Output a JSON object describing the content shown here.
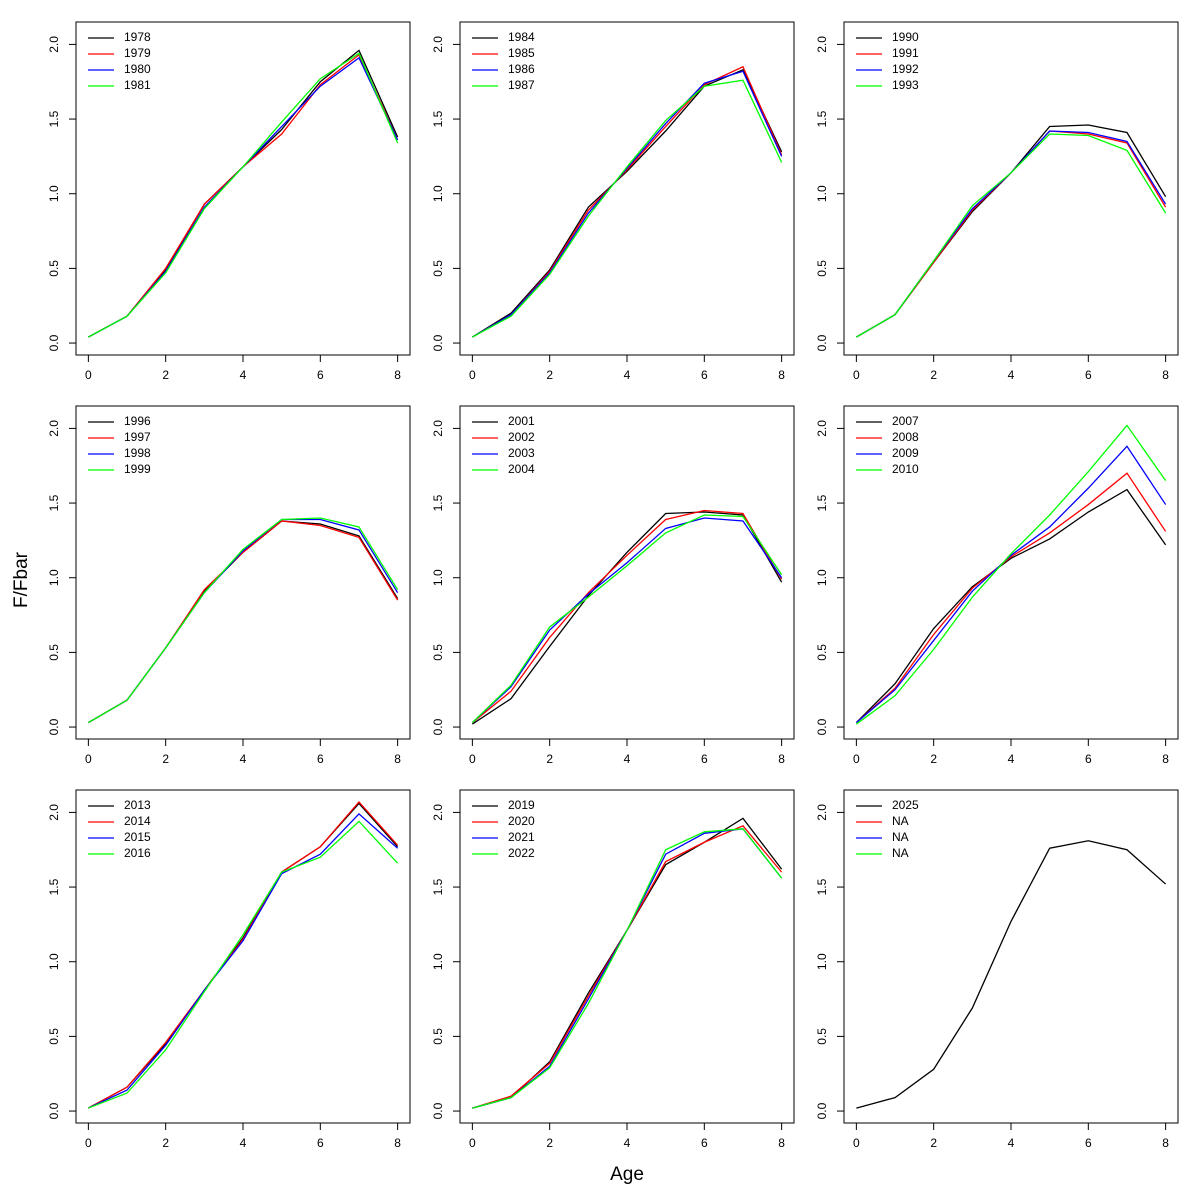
{
  "xlabel": "Age",
  "ylabel": "F/Fbar",
  "chart_data": [
    {
      "type": "line",
      "x": [
        0,
        1,
        2,
        3,
        4,
        5,
        6,
        7,
        8
      ],
      "xlim": [
        -0.32,
        8.32
      ],
      "ylim": [
        -0.08,
        2.15
      ],
      "xticks": [
        0,
        2,
        4,
        6,
        8
      ],
      "yticks": [
        {
          "value": 0,
          "label": "0.0"
        },
        0.5,
        {
          "value": 1,
          "label": "1.0"
        },
        1.5,
        {
          "value": 2,
          "label": "2.0"
        }
      ],
      "legend": "top-left",
      "series": [
        {
          "name": "1978",
          "color": "#000000",
          "values": [
            0.04,
            0.18,
            0.49,
            0.93,
            1.18,
            1.43,
            1.75,
            1.96,
            1.38
          ]
        },
        {
          "name": "1979",
          "color": "#ff0000",
          "values": [
            0.04,
            0.18,
            0.5,
            0.93,
            1.18,
            1.4,
            1.73,
            1.93,
            1.36
          ]
        },
        {
          "name": "1980",
          "color": "#0000ff",
          "values": [
            0.04,
            0.18,
            0.48,
            0.91,
            1.18,
            1.45,
            1.72,
            1.91,
            1.36
          ]
        },
        {
          "name": "1981",
          "color": "#00ff00",
          "values": [
            0.04,
            0.18,
            0.47,
            0.9,
            1.18,
            1.48,
            1.77,
            1.94,
            1.34
          ]
        }
      ]
    },
    {
      "type": "line",
      "x": [
        0,
        1,
        2,
        3,
        4,
        5,
        6,
        7,
        8
      ],
      "xlim": [
        -0.32,
        8.32
      ],
      "ylim": [
        -0.08,
        2.15
      ],
      "xticks": [
        0,
        2,
        4,
        6,
        8
      ],
      "yticks": [
        {
          "value": 0,
          "label": "0.0"
        },
        0.5,
        {
          "value": 1,
          "label": "1.0"
        },
        1.5,
        {
          "value": 2,
          "label": "2.0"
        }
      ],
      "legend": "top-left",
      "series": [
        {
          "name": "1984",
          "color": "#000000",
          "values": [
            0.04,
            0.2,
            0.49,
            0.91,
            1.15,
            1.42,
            1.72,
            1.83,
            1.28
          ]
        },
        {
          "name": "1985",
          "color": "#ff0000",
          "values": [
            0.04,
            0.19,
            0.48,
            0.89,
            1.16,
            1.45,
            1.73,
            1.85,
            1.26
          ]
        },
        {
          "name": "1986",
          "color": "#0000ff",
          "values": [
            0.04,
            0.19,
            0.47,
            0.87,
            1.17,
            1.47,
            1.74,
            1.82,
            1.25
          ]
        },
        {
          "name": "1987",
          "color": "#00ff00",
          "values": [
            0.04,
            0.18,
            0.46,
            0.85,
            1.18,
            1.49,
            1.72,
            1.76,
            1.21
          ]
        }
      ]
    },
    {
      "type": "line",
      "x": [
        0,
        1,
        2,
        3,
        4,
        5,
        6,
        7,
        8
      ],
      "xlim": [
        -0.32,
        8.32
      ],
      "ylim": [
        -0.08,
        2.15
      ],
      "xticks": [
        0,
        2,
        4,
        6,
        8
      ],
      "yticks": [
        {
          "value": 0,
          "label": "0.0"
        },
        0.5,
        {
          "value": 1,
          "label": "1.0"
        },
        1.5,
        {
          "value": 2,
          "label": "2.0"
        }
      ],
      "legend": "top-left",
      "series": [
        {
          "name": "1990",
          "color": "#000000",
          "values": [
            0.04,
            0.19,
            0.54,
            0.88,
            1.14,
            1.45,
            1.46,
            1.41,
            0.98
          ]
        },
        {
          "name": "1991",
          "color": "#ff0000",
          "values": [
            0.04,
            0.19,
            0.54,
            0.89,
            1.14,
            1.42,
            1.4,
            1.34,
            0.91
          ]
        },
        {
          "name": "1992",
          "color": "#0000ff",
          "values": [
            0.04,
            0.19,
            0.55,
            0.9,
            1.14,
            1.42,
            1.41,
            1.35,
            0.93
          ]
        },
        {
          "name": "1993",
          "color": "#00ff00",
          "values": [
            0.04,
            0.19,
            0.55,
            0.92,
            1.14,
            1.4,
            1.39,
            1.29,
            0.87
          ]
        }
      ]
    },
    {
      "type": "line",
      "x": [
        0,
        1,
        2,
        3,
        4,
        5,
        6,
        7,
        8
      ],
      "xlim": [
        -0.32,
        8.32
      ],
      "ylim": [
        -0.08,
        2.15
      ],
      "xticks": [
        0,
        2,
        4,
        6,
        8
      ],
      "yticks": [
        {
          "value": 0,
          "label": "0.0"
        },
        0.5,
        {
          "value": 1,
          "label": "1.0"
        },
        1.5,
        {
          "value": 2,
          "label": "2.0"
        }
      ],
      "legend": "top-left",
      "series": [
        {
          "name": "1996",
          "color": "#000000",
          "values": [
            0.03,
            0.18,
            0.53,
            0.91,
            1.17,
            1.38,
            1.36,
            1.28,
            0.86
          ]
        },
        {
          "name": "1997",
          "color": "#ff0000",
          "values": [
            0.03,
            0.18,
            0.53,
            0.92,
            1.17,
            1.38,
            1.35,
            1.27,
            0.85
          ]
        },
        {
          "name": "1998",
          "color": "#0000ff",
          "values": [
            0.03,
            0.18,
            0.53,
            0.9,
            1.18,
            1.39,
            1.39,
            1.32,
            0.9
          ]
        },
        {
          "name": "1999",
          "color": "#00ff00",
          "values": [
            0.03,
            0.18,
            0.53,
            0.9,
            1.19,
            1.39,
            1.4,
            1.34,
            0.92
          ]
        }
      ]
    },
    {
      "type": "line",
      "x": [
        0,
        1,
        2,
        3,
        4,
        5,
        6,
        7,
        8
      ],
      "xlim": [
        -0.32,
        8.32
      ],
      "ylim": [
        -0.08,
        2.15
      ],
      "xticks": [
        0,
        2,
        4,
        6,
        8
      ],
      "yticks": [
        {
          "value": 0,
          "label": "0.0"
        },
        0.5,
        {
          "value": 1,
          "label": "1.0"
        },
        1.5,
        {
          "value": 2,
          "label": "2.0"
        }
      ],
      "legend": "top-left",
      "series": [
        {
          "name": "2001",
          "color": "#000000",
          "values": [
            0.02,
            0.19,
            0.54,
            0.88,
            1.17,
            1.43,
            1.44,
            1.42,
            0.97
          ]
        },
        {
          "name": "2002",
          "color": "#ff0000",
          "values": [
            0.03,
            0.24,
            0.6,
            0.9,
            1.15,
            1.39,
            1.45,
            1.43,
            0.99
          ]
        },
        {
          "name": "2003",
          "color": "#0000ff",
          "values": [
            0.03,
            0.27,
            0.65,
            0.89,
            1.1,
            1.33,
            1.4,
            1.38,
            1.0
          ]
        },
        {
          "name": "2004",
          "color": "#00ff00",
          "values": [
            0.03,
            0.28,
            0.67,
            0.87,
            1.08,
            1.3,
            1.42,
            1.41,
            1.02
          ]
        }
      ]
    },
    {
      "type": "line",
      "x": [
        0,
        1,
        2,
        3,
        4,
        5,
        6,
        7,
        8
      ],
      "xlim": [
        -0.32,
        8.32
      ],
      "ylim": [
        -0.08,
        2.15
      ],
      "xticks": [
        0,
        2,
        4,
        6,
        8
      ],
      "yticks": [
        {
          "value": 0,
          "label": "0.0"
        },
        0.5,
        {
          "value": 1,
          "label": "1.0"
        },
        1.5,
        {
          "value": 2,
          "label": "2.0"
        }
      ],
      "legend": "top-left",
      "series": [
        {
          "name": "2007",
          "color": "#000000",
          "values": [
            0.03,
            0.29,
            0.66,
            0.94,
            1.13,
            1.26,
            1.44,
            1.59,
            1.22
          ]
        },
        {
          "name": "2008",
          "color": "#ff0000",
          "values": [
            0.03,
            0.26,
            0.62,
            0.93,
            1.14,
            1.3,
            1.49,
            1.7,
            1.31
          ]
        },
        {
          "name": "2009",
          "color": "#0000ff",
          "values": [
            0.03,
            0.25,
            0.58,
            0.91,
            1.15,
            1.34,
            1.6,
            1.88,
            1.49
          ]
        },
        {
          "name": "2010",
          "color": "#00ff00",
          "values": [
            0.02,
            0.21,
            0.52,
            0.87,
            1.16,
            1.42,
            1.71,
            2.02,
            1.65
          ]
        }
      ]
    },
    {
      "type": "line",
      "x": [
        0,
        1,
        2,
        3,
        4,
        5,
        6,
        7,
        8
      ],
      "xlim": [
        -0.32,
        8.32
      ],
      "ylim": [
        -0.08,
        2.15
      ],
      "xticks": [
        0,
        2,
        4,
        6,
        8
      ],
      "yticks": [
        {
          "value": 0,
          "label": "0.0"
        },
        0.5,
        {
          "value": 1,
          "label": "1.0"
        },
        1.5,
        {
          "value": 2,
          "label": "2.0"
        }
      ],
      "legend": "top-left",
      "series": [
        {
          "name": "2013",
          "color": "#000000",
          "values": [
            0.02,
            0.16,
            0.45,
            0.81,
            1.16,
            1.6,
            1.77,
            2.06,
            1.77
          ]
        },
        {
          "name": "2014",
          "color": "#ff0000",
          "values": [
            0.02,
            0.16,
            0.46,
            0.81,
            1.15,
            1.6,
            1.77,
            2.07,
            1.78
          ]
        },
        {
          "name": "2015",
          "color": "#0000ff",
          "values": [
            0.02,
            0.14,
            0.44,
            0.81,
            1.14,
            1.59,
            1.72,
            1.99,
            1.76
          ]
        },
        {
          "name": "2016",
          "color": "#00ff00",
          "values": [
            0.02,
            0.12,
            0.41,
            0.8,
            1.18,
            1.6,
            1.7,
            1.94,
            1.66
          ]
        }
      ]
    },
    {
      "type": "line",
      "x": [
        0,
        1,
        2,
        3,
        4,
        5,
        6,
        7,
        8
      ],
      "xlim": [
        -0.32,
        8.32
      ],
      "ylim": [
        -0.08,
        2.15
      ],
      "xticks": [
        0,
        2,
        4,
        6,
        8
      ],
      "yticks": [
        {
          "value": 0,
          "label": "0.0"
        },
        0.5,
        {
          "value": 1,
          "label": "1.0"
        },
        1.5,
        {
          "value": 2,
          "label": "2.0"
        }
      ],
      "legend": "top-left",
      "series": [
        {
          "name": "2019",
          "color": "#000000",
          "values": [
            0.02,
            0.09,
            0.33,
            0.79,
            1.21,
            1.65,
            1.8,
            1.96,
            1.62
          ]
        },
        {
          "name": "2020",
          "color": "#ff0000",
          "values": [
            0.02,
            0.1,
            0.32,
            0.77,
            1.21,
            1.67,
            1.8,
            1.91,
            1.6
          ]
        },
        {
          "name": "2021",
          "color": "#0000ff",
          "values": [
            0.02,
            0.09,
            0.3,
            0.75,
            1.21,
            1.72,
            1.86,
            1.89,
            1.56
          ]
        },
        {
          "name": "2022",
          "color": "#00ff00",
          "values": [
            0.02,
            0.09,
            0.29,
            0.72,
            1.21,
            1.75,
            1.87,
            1.89,
            1.56
          ]
        }
      ]
    },
    {
      "type": "line",
      "x": [
        0,
        1,
        2,
        3,
        4,
        5,
        6,
        7,
        8
      ],
      "xlim": [
        -0.32,
        8.32
      ],
      "ylim": [
        -0.08,
        2.15
      ],
      "xticks": [
        0,
        2,
        4,
        6,
        8
      ],
      "yticks": [
        {
          "value": 0,
          "label": "0.0"
        },
        0.5,
        {
          "value": 1,
          "label": "1.0"
        },
        1.5,
        {
          "value": 2,
          "label": "2.0"
        }
      ],
      "legend": "top-left",
      "series": [
        {
          "name": "2025",
          "color": "#000000",
          "values": [
            0.02,
            0.09,
            0.28,
            0.69,
            1.27,
            1.76,
            1.81,
            1.75,
            1.52
          ]
        },
        {
          "name": "NA",
          "color": "#ff0000",
          "values": [
            null,
            null,
            null,
            null,
            null,
            null,
            null,
            null,
            null
          ]
        },
        {
          "name": "NA",
          "color": "#0000ff",
          "values": [
            null,
            null,
            null,
            null,
            null,
            null,
            null,
            null,
            null
          ]
        },
        {
          "name": "NA",
          "color": "#00ff00",
          "values": [
            null,
            null,
            null,
            null,
            null,
            null,
            null,
            null,
            null
          ]
        }
      ]
    }
  ]
}
